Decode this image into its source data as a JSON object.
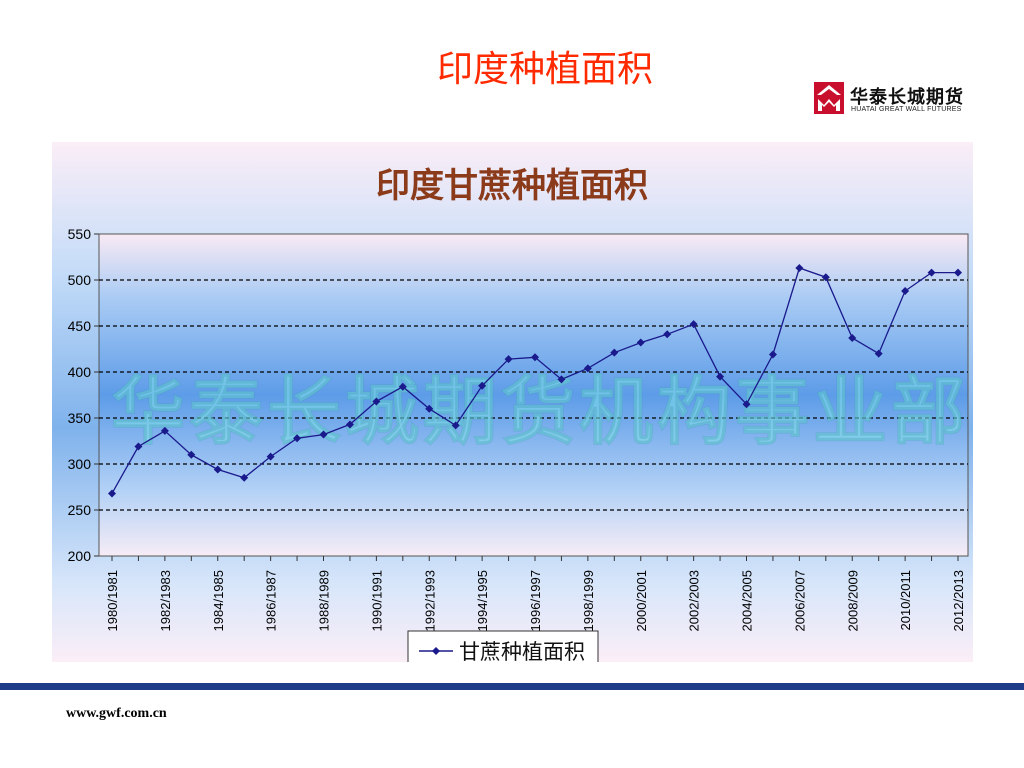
{
  "slide": {
    "title": "印度种植面积",
    "website": "www.gwf.com.cn"
  },
  "logo": {
    "name_cn": "华泰长城期货",
    "name_en": "HUATAI GREAT WALL FUTURES",
    "color": "#c8102e"
  },
  "watermark": "华泰长城期货机构事业部",
  "colors": {
    "title": "#ff2a00",
    "series": "#1a1a8c",
    "chart_title": "#8b3a1a",
    "bottom_bar": "#1f3c88"
  },
  "chart_data": {
    "type": "line",
    "title": "印度甘蔗种植面积",
    "xlabel": "",
    "ylabel": "",
    "ylim": [
      200,
      550
    ],
    "yticks": [
      200,
      250,
      300,
      350,
      400,
      450,
      500,
      550
    ],
    "grid": true,
    "legend": "bottom-center",
    "categories": [
      "1980/1981",
      "1981/1982",
      "1982/1983",
      "1983/1984",
      "1984/1985",
      "1985/1986",
      "1986/1987",
      "1987/1988",
      "1988/1989",
      "1989/1990",
      "1990/1991",
      "1991/1992",
      "1992/1993",
      "1993/1994",
      "1994/1995",
      "1995/1996",
      "1996/1997",
      "1997/1998",
      "1998/1999",
      "1999/2000",
      "2000/2001",
      "2001/2002",
      "2002/2003",
      "2003/2004",
      "2004/2005",
      "2005/2006",
      "2006/2007",
      "2007/2008",
      "2008/2009",
      "2009/2010",
      "2010/2011",
      "2011/2012",
      "2012/2013"
    ],
    "xtick_labels": [
      "1980/1981",
      "1982/1983",
      "1984/1985",
      "1986/1987",
      "1988/1989",
      "1990/1991",
      "1992/1993",
      "1994/1995",
      "1996/1997",
      "1998/1999",
      "2000/2001",
      "2002/2003",
      "2004/2005",
      "2006/2007",
      "2008/2009",
      "2010/2011",
      "2012/2013"
    ],
    "series": [
      {
        "name": "甘蔗种植面积",
        "values": [
          268,
          319,
          336,
          310,
          294,
          285,
          308,
          328,
          332,
          343,
          368,
          384,
          360,
          342,
          385,
          414,
          416,
          392,
          404,
          421,
          432,
          441,
          452,
          395,
          365,
          419,
          513,
          503,
          437,
          420,
          488,
          508,
          508
        ]
      }
    ]
  }
}
